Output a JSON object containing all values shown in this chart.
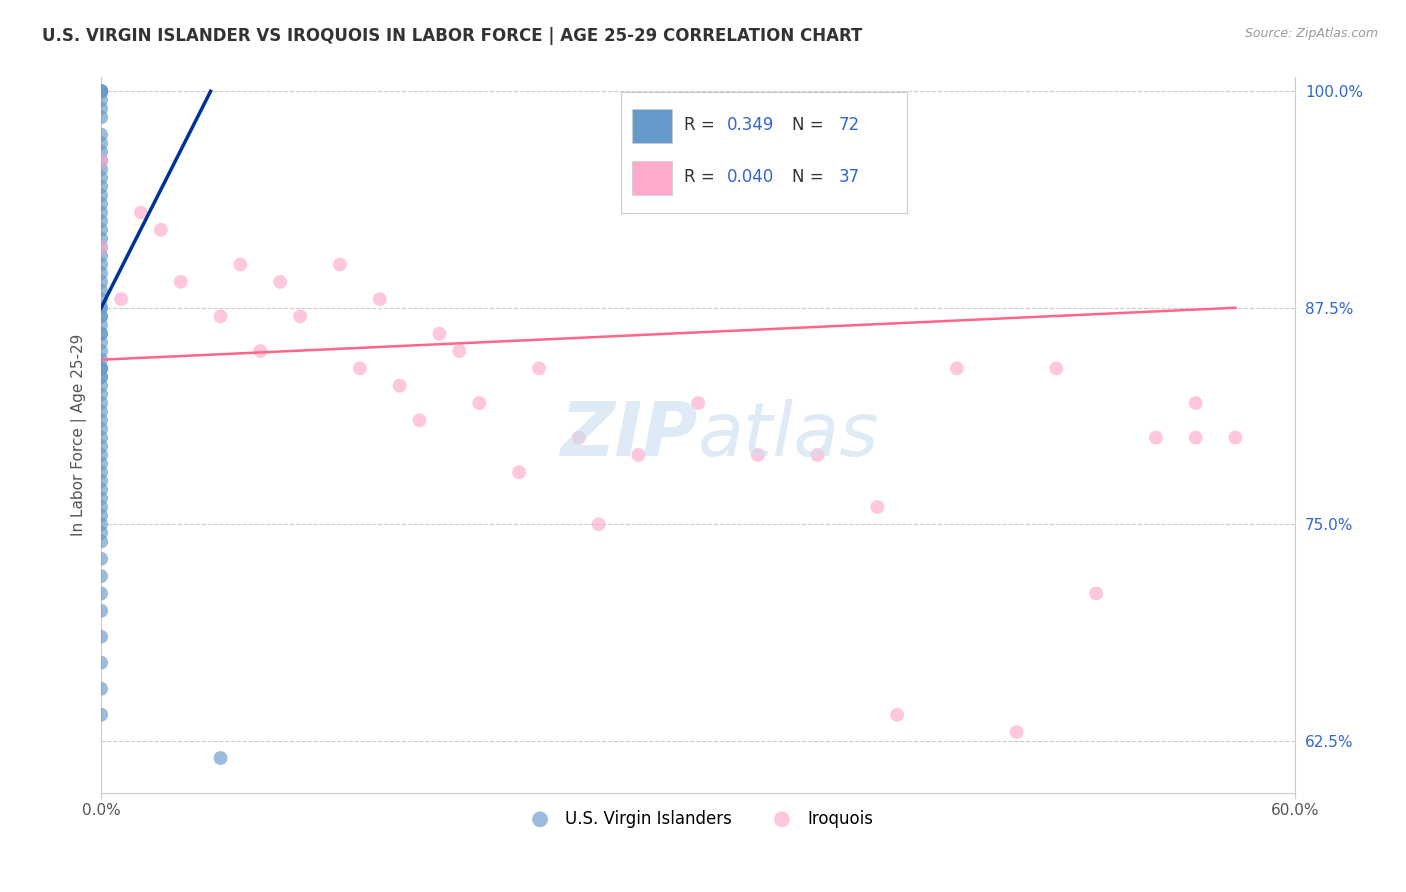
{
  "title": "U.S. VIRGIN ISLANDER VS IROQUOIS IN LABOR FORCE | AGE 25-29 CORRELATION CHART",
  "source": "Source: ZipAtlas.com",
  "ylabel": "In Labor Force | Age 25-29",
  "xlim": [
    0.0,
    0.6
  ],
  "ylim": [
    0.595,
    1.008
  ],
  "xticks": [
    0.0,
    0.6
  ],
  "xtick_labels": [
    "0.0%",
    "60.0%"
  ],
  "yticks": [
    0.625,
    0.75,
    0.875,
    1.0
  ],
  "ytick_labels": [
    "62.5%",
    "75.0%",
    "87.5%",
    "100.0%"
  ],
  "grid_color": "#cccccc",
  "background_color": "#ffffff",
  "blue_color": "#6699cc",
  "pink_color": "#ffaacc",
  "blue_line_color": "#003399",
  "pink_line_color": "#ff6688",
  "axis_label_color": "#3366cc",
  "legend_R1": "0.349",
  "legend_N1": "72",
  "legend_R2": "0.040",
  "legend_N2": "37",
  "blue_dots_x": [
    0.0,
    0.0,
    0.0,
    0.0,
    0.0,
    0.0,
    0.0,
    0.0,
    0.0,
    0.0,
    0.0,
    0.0,
    0.0,
    0.0,
    0.0,
    0.0,
    0.0,
    0.0,
    0.0,
    0.0,
    0.0,
    0.0,
    0.0,
    0.0,
    0.0,
    0.0,
    0.0,
    0.0,
    0.0,
    0.0,
    0.0,
    0.0,
    0.0,
    0.0,
    0.0,
    0.0,
    0.0,
    0.0,
    0.0,
    0.0,
    0.0,
    0.0,
    0.0,
    0.0,
    0.0,
    0.0,
    0.0,
    0.0,
    0.0,
    0.0,
    0.0,
    0.0,
    0.0,
    0.0,
    0.0,
    0.0,
    0.0,
    0.0,
    0.0,
    0.0,
    0.0,
    0.0,
    0.0,
    0.0,
    0.0,
    0.0,
    0.0,
    0.0,
    0.0,
    0.0,
    0.0,
    0.06
  ],
  "blue_dots_y": [
    1.0,
    1.0,
    1.0,
    1.0,
    1.0,
    1.0,
    0.995,
    0.99,
    0.985,
    0.975,
    0.97,
    0.965,
    0.96,
    0.955,
    0.95,
    0.945,
    0.94,
    0.935,
    0.93,
    0.925,
    0.92,
    0.915,
    0.91,
    0.905,
    0.9,
    0.895,
    0.89,
    0.885,
    0.88,
    0.875,
    0.875,
    0.87,
    0.87,
    0.865,
    0.86,
    0.86,
    0.855,
    0.85,
    0.845,
    0.84,
    0.84,
    0.84,
    0.835,
    0.835,
    0.83,
    0.825,
    0.82,
    0.815,
    0.81,
    0.805,
    0.8,
    0.795,
    0.79,
    0.785,
    0.78,
    0.775,
    0.77,
    0.765,
    0.76,
    0.755,
    0.75,
    0.745,
    0.74,
    0.73,
    0.72,
    0.71,
    0.7,
    0.685,
    0.67,
    0.655,
    0.64,
    0.615
  ],
  "pink_dots_x": [
    0.0,
    0.0,
    0.01,
    0.02,
    0.03,
    0.04,
    0.06,
    0.07,
    0.08,
    0.09,
    0.1,
    0.12,
    0.13,
    0.14,
    0.15,
    0.16,
    0.17,
    0.18,
    0.19,
    0.21,
    0.22,
    0.24,
    0.25,
    0.27,
    0.3,
    0.33,
    0.36,
    0.39,
    0.4,
    0.43,
    0.46,
    0.48,
    0.5,
    0.53,
    0.55,
    0.55,
    0.57
  ],
  "pink_dots_y": [
    0.91,
    0.96,
    0.88,
    0.93,
    0.92,
    0.89,
    0.87,
    0.9,
    0.85,
    0.89,
    0.87,
    0.9,
    0.84,
    0.88,
    0.83,
    0.81,
    0.86,
    0.85,
    0.82,
    0.78,
    0.84,
    0.8,
    0.75,
    0.79,
    0.82,
    0.79,
    0.79,
    0.76,
    0.64,
    0.84,
    0.63,
    0.84,
    0.71,
    0.8,
    0.82,
    0.8,
    0.8
  ],
  "blue_line_x": [
    0.0,
    0.055
  ],
  "blue_line_y": [
    0.875,
    1.0
  ],
  "pink_line_x": [
    0.0,
    0.57
  ],
  "pink_line_y": [
    0.845,
    0.875
  ]
}
